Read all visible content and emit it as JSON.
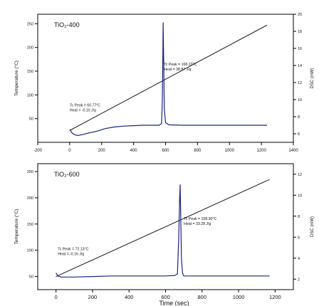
{
  "chart_data": [
    {
      "type": "line",
      "title": "TiO₂-400",
      "xlabel": "",
      "ylabel_left": "Temperature (°C)",
      "ylabel_right": "DSC (mW)",
      "xlim": [
        -200,
        1400
      ],
      "ylim_left": [
        0,
        270
      ],
      "ylim_right": [
        5,
        20
      ],
      "x_ticks": [
        "-200",
        "0",
        "200",
        "400",
        "600",
        "800",
        "1000",
        "1200",
        "1400"
      ],
      "y_ticks_left": [
        "50",
        "100",
        "150",
        "200",
        "250"
      ],
      "y_ticks_right": [
        "6",
        "8",
        "10",
        "12",
        "14",
        "16",
        "18",
        "20"
      ],
      "series": [
        {
          "axis": "left",
          "color": "#000000",
          "x": [
            0,
            1235
          ],
          "y": [
            25,
            247
          ]
        },
        {
          "axis": "right",
          "color": "#1a237e",
          "x": [
            0,
            15,
            30,
            50,
            80,
            120,
            170,
            220,
            280,
            340,
            400,
            460,
            520,
            560,
            575,
            580,
            583,
            585,
            588,
            592,
            600,
            620,
            700,
            800,
            900,
            1000,
            1100,
            1200,
            1235
          ],
          "y": [
            6.5,
            6.1,
            5.9,
            5.8,
            5.9,
            6.1,
            6.3,
            6.6,
            6.8,
            6.9,
            6.95,
            7.0,
            7.0,
            7.0,
            7.2,
            10.0,
            15.0,
            19.0,
            15.0,
            9.0,
            7.3,
            7.05,
            7.0,
            7.0,
            7.0,
            7.0,
            7.0,
            7.0,
            7.0
          ]
        }
      ],
      "annotations": [
        {
          "text_lines": [
            "Tc Peak = 60.77°C",
            "Heat = -0.10 J/g"
          ],
          "x": 0,
          "y": 76
        },
        {
          "text_lines": [
            "Tc Peak = 168.22°C",
            "Heat = 38.87 J/g"
          ],
          "x": 590,
          "y": 162
        }
      ]
    },
    {
      "type": "line",
      "title": "TiO₂-600",
      "xlabel": "Time (sec)",
      "ylabel_left": "Temperature (°C)",
      "ylabel_right": "DSC (mW)",
      "xlim": [
        -100,
        1300
      ],
      "ylim_left": [
        25,
        265
      ],
      "ylim_right": [
        1,
        13
      ],
      "x_ticks": [
        "0",
        "200",
        "400",
        "600",
        "800",
        "1000",
        "1200"
      ],
      "y_ticks_left": [
        "50",
        "100",
        "150",
        "200",
        "250"
      ],
      "y_ticks_right": [
        "2",
        "4",
        "6",
        "8",
        "10",
        "12"
      ],
      "series": [
        {
          "axis": "left",
          "color": "#000000",
          "x": [
            0,
            1170
          ],
          "y": [
            50,
            235
          ]
        },
        {
          "axis": "right",
          "color": "#1a237e",
          "x": [
            0,
            10,
            30,
            60,
            100,
            200,
            300,
            400,
            500,
            600,
            650,
            665,
            672,
            677,
            680,
            683,
            687,
            693,
            700,
            720,
            800,
            900,
            1000,
            1100,
            1170
          ],
          "y": [
            2.6,
            2.3,
            2.2,
            2.2,
            2.2,
            2.25,
            2.3,
            2.3,
            2.3,
            2.3,
            2.35,
            2.5,
            6.0,
            9.5,
            11.0,
            8.0,
            4.0,
            2.6,
            2.3,
            2.3,
            2.3,
            2.3,
            2.3,
            2.3,
            2.3
          ]
        }
      ],
      "annotations": [
        {
          "text_lines": [
            "Tc Peak = 72.13°C",
            "Heat = -0.16 J/g"
          ],
          "x": 10,
          "y": 100
        },
        {
          "text_lines": [
            "Tc Peak = 158.30°C",
            "Heat = 33.28 J/g"
          ],
          "x": 700,
          "y": 158
        }
      ]
    }
  ]
}
